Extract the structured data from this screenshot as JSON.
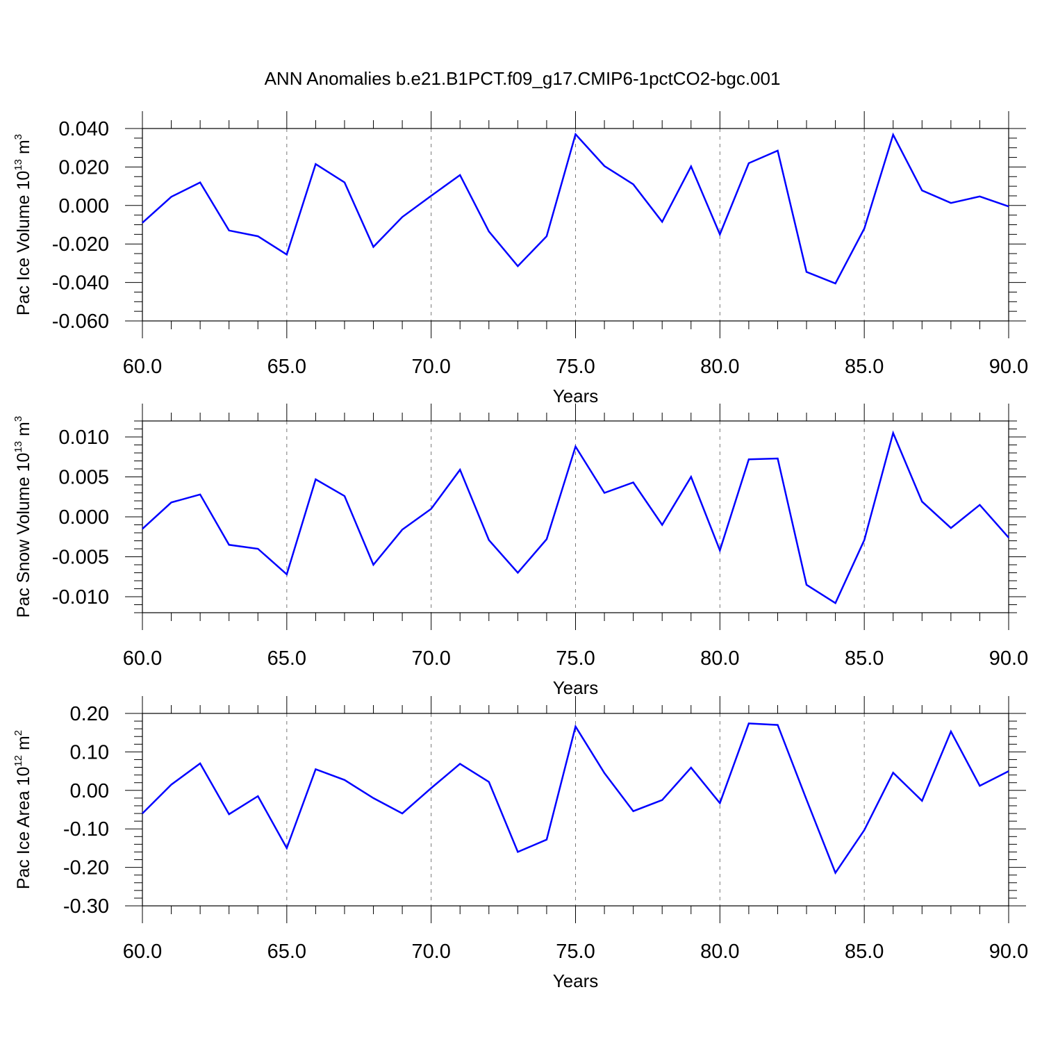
{
  "chart_data": {
    "title": "ANN Anomalies b.e21.B1PCT.f09_g17.CMIP6-1pctCO2-bgc.001",
    "series_color": "#0000ff",
    "x_tick_labels": [
      "60.0",
      "65.0",
      "70.0",
      "75.0",
      "80.0",
      "85.0",
      "90.0"
    ],
    "panels": [
      {
        "type": "line",
        "ylabel_text": "Pac Ice Volume 10",
        "ylabel_exponent": "13",
        "ylabel_unit": " m",
        "ylabel_unit_exponent": "3",
        "xlabel": "Years",
        "xlim": [
          60,
          90
        ],
        "ylim": [
          -0.06,
          0.04
        ],
        "y_ticks": [
          -0.06,
          -0.04,
          -0.02,
          0.0,
          0.02,
          0.04
        ],
        "y_tick_labels": [
          "-0.060",
          "-0.040",
          "-0.020",
          "0.000",
          "0.020",
          "0.040"
        ],
        "y_minor_step": 0.005,
        "x": [
          60,
          61,
          62,
          63,
          64,
          65,
          66,
          67,
          68,
          69,
          70,
          71,
          72,
          73,
          74,
          75,
          76,
          77,
          78,
          79,
          80,
          81,
          82,
          83,
          84,
          85,
          86,
          87,
          88,
          89,
          90
        ],
        "values": [
          -0.009,
          0.0045,
          0.012,
          -0.013,
          -0.016,
          -0.0255,
          0.0215,
          0.012,
          -0.0215,
          -0.006,
          0.005,
          0.0158,
          -0.0135,
          -0.0315,
          -0.016,
          0.037,
          0.0205,
          0.011,
          -0.0085,
          0.0203,
          -0.015,
          0.022,
          0.0285,
          -0.0345,
          -0.0405,
          -0.012,
          0.0368,
          0.0078,
          0.0013,
          0.0047,
          -0.0005
        ]
      },
      {
        "type": "line",
        "ylabel_text": "Pac Snow Volume 10",
        "ylabel_exponent": "13",
        "ylabel_unit": " m",
        "ylabel_unit_exponent": "3",
        "xlabel": "Years",
        "xlim": [
          60,
          90
        ],
        "ylim": [
          -0.012,
          0.012
        ],
        "y_ticks": [
          -0.01,
          -0.005,
          0.0,
          0.005,
          0.01
        ],
        "y_tick_labels": [
          "-0.010",
          "-0.005",
          "0.000",
          "0.005",
          "0.010"
        ],
        "y_minor_step": 0.001,
        "x": [
          60,
          61,
          62,
          63,
          64,
          65,
          66,
          67,
          68,
          69,
          70,
          71,
          72,
          73,
          74,
          75,
          76,
          77,
          78,
          79,
          80,
          81,
          82,
          83,
          84,
          85,
          86,
          87,
          88,
          89,
          90
        ],
        "values": [
          -0.0015,
          0.0018,
          0.0028,
          -0.0035,
          -0.004,
          -0.0072,
          0.0047,
          0.0026,
          -0.006,
          -0.0016,
          0.001,
          0.0059,
          -0.0029,
          -0.007,
          -0.0028,
          0.0088,
          0.003,
          0.0043,
          -0.001,
          0.005,
          -0.0042,
          0.0072,
          0.0073,
          -0.0085,
          -0.0108,
          -0.0029,
          0.0105,
          0.0019,
          -0.0014,
          0.0015,
          -0.0026
        ]
      },
      {
        "type": "line",
        "ylabel_text": "Pac Ice Area 10",
        "ylabel_exponent": "12",
        "ylabel_unit": " m",
        "ylabel_unit_exponent": "2",
        "xlabel": "Years",
        "xlim": [
          60,
          90
        ],
        "ylim": [
          -0.3,
          0.2
        ],
        "y_ticks": [
          -0.3,
          -0.2,
          -0.1,
          0.0,
          0.1,
          0.2
        ],
        "y_tick_labels": [
          "-0.30",
          "-0.20",
          "-0.10",
          "0.00",
          "0.10",
          "0.20"
        ],
        "y_minor_step": 0.02,
        "x": [
          60,
          61,
          62,
          63,
          64,
          65,
          66,
          67,
          68,
          69,
          70,
          71,
          72,
          73,
          74,
          75,
          76,
          77,
          78,
          79,
          80,
          81,
          82,
          83,
          84,
          85,
          86,
          87,
          88,
          89,
          90
        ],
        "values": [
          -0.06,
          0.015,
          0.07,
          -0.062,
          -0.015,
          -0.15,
          0.055,
          0.027,
          -0.02,
          -0.06,
          0.006,
          0.069,
          0.022,
          -0.16,
          -0.128,
          0.166,
          0.045,
          -0.054,
          -0.025,
          0.059,
          -0.033,
          0.174,
          0.17,
          -0.024,
          -0.214,
          -0.103,
          0.046,
          -0.027,
          0.153,
          0.012,
          0.05
        ]
      }
    ]
  }
}
